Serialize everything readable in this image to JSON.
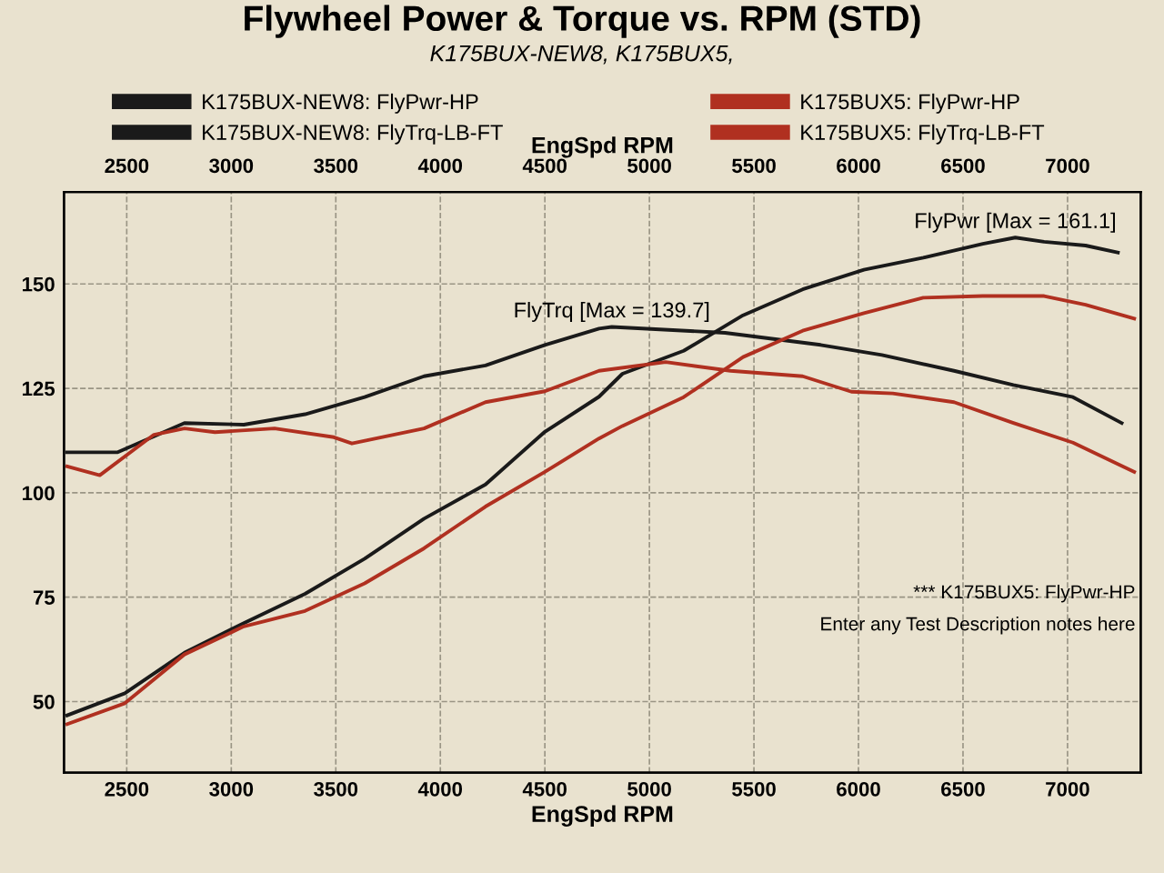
{
  "chart_data": {
    "type": "line",
    "title": "Flywheel Power & Torque vs. RPM (STD)",
    "subtitle": "K175BUX-NEW8, K175BUX5,",
    "xlabel": "EngSpd RPM",
    "x2label": "EngSpd RPM",
    "xlim": [
      2200,
      7350
    ],
    "xticks": [
      2500,
      3000,
      3500,
      4000,
      4500,
      5000,
      5500,
      6000,
      6500,
      7000
    ],
    "x2lim": [
      2200,
      7350
    ],
    "x2ticks": [
      2500,
      3000,
      3500,
      4000,
      4500,
      5000,
      5500,
      6000,
      6500,
      7000
    ],
    "ylim": [
      33,
      172
    ],
    "yticks": [
      50,
      75,
      100,
      125,
      150
    ],
    "grid": true,
    "legend": "top",
    "line_style": "solid",
    "marker": "none",
    "series": [
      {
        "name": "K175BUX-NEW8: FlyPwr-HP",
        "color": "#1a1a1a",
        "x": [
          2215,
          2491,
          2776,
          3060,
          3353,
          3638,
          3922,
          4216,
          4500,
          4759,
          4871,
          5164,
          5448,
          5733,
          6026,
          6310,
          6595,
          6750,
          6888,
          7086,
          7241
        ],
        "values": [
          46.7,
          52,
          61.7,
          68.8,
          75.8,
          84.2,
          93.8,
          102,
          114.6,
          123,
          128.5,
          134,
          142.5,
          148.7,
          153.4,
          156.3,
          159.6,
          161.1,
          160.1,
          159.2,
          157.5
        ]
      },
      {
        "name": "K175BUX-NEW8: FlyTrq-LB-FT",
        "color": "#1a1a1a",
        "x": [
          2215,
          2457,
          2776,
          3060,
          3353,
          3638,
          3922,
          4216,
          4500,
          4759,
          4820,
          5362,
          5819,
          6112,
          6457,
          6741,
          7026,
          7259
        ],
        "values": [
          109.7,
          109.7,
          116.7,
          116.3,
          118.8,
          122.9,
          127.9,
          130.5,
          135.4,
          139.3,
          139.7,
          138.3,
          135.4,
          133,
          129.2,
          125.8,
          122.9,
          116.7
        ]
      },
      {
        "name": "K175BUX5: FlyPwr-HP",
        "color": "#b03020",
        "x": [
          2215,
          2491,
          2776,
          3060,
          3353,
          3638,
          3922,
          4216,
          4500,
          4759,
          4871,
          5164,
          5448,
          5733,
          6026,
          6310,
          6595,
          6888,
          7086,
          7319
        ],
        "values": [
          44.6,
          49.6,
          61.3,
          68,
          71.7,
          78.3,
          86.7,
          96.7,
          105,
          113,
          116,
          122.9,
          132.5,
          138.8,
          143,
          146.7,
          147.1,
          147.1,
          145,
          141.7
        ]
      },
      {
        "name": "K175BUX5: FlyTrq-LB-FT",
        "color": "#b03020",
        "x": [
          2215,
          2371,
          2630,
          2776,
          2922,
          3207,
          3491,
          3577,
          3922,
          4216,
          4500,
          4759,
          5078,
          5388,
          5733,
          5966,
          6164,
          6457,
          6741,
          7026,
          7319
        ],
        "values": [
          106.3,
          104.2,
          113.9,
          115.4,
          114.5,
          115.4,
          113.3,
          111.8,
          115.4,
          121.7,
          124.3,
          129.2,
          131.3,
          129.2,
          127.9,
          124.2,
          123.8,
          121.7,
          116.7,
          112,
          105
        ]
      }
    ],
    "annotations": [
      {
        "text": "FlyPwr [Max = 161.1]",
        "x": 6750,
        "y": 161.1
      },
      {
        "text": "FlyTrq [Max = 139.7]",
        "x": 4820,
        "y": 139.7
      },
      "*** K175BUX5: FlyPwr-HP",
      "Enter any Test Description notes here"
    ]
  }
}
